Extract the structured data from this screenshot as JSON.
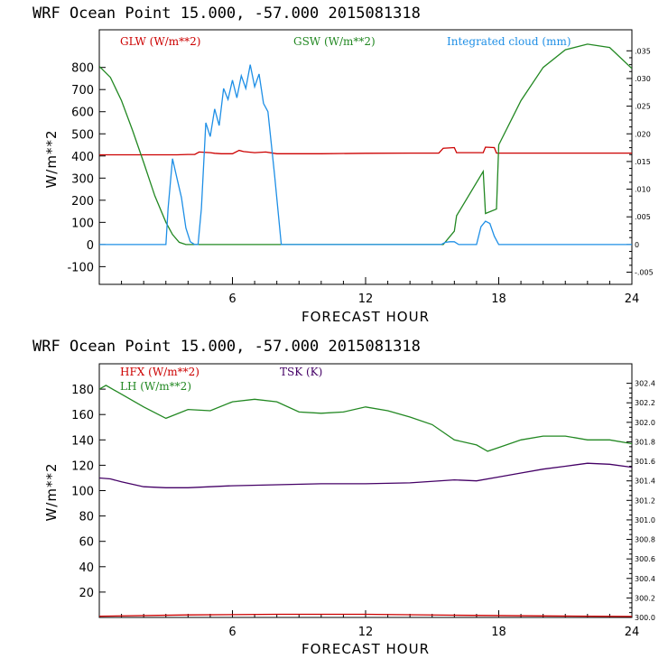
{
  "chart_data": [
    {
      "type": "line",
      "title": "WRF   Ocean Point   15.000, -57.000  2015081318",
      "xlabel": "FORECAST HOUR",
      "ylabel": "W/m**2",
      "xlim": [
        0,
        24
      ],
      "ylim": [
        -180,
        970
      ],
      "xticks": [
        6,
        12,
        18,
        24
      ],
      "yticks": [
        -100,
        0,
        100,
        200,
        300,
        400,
        500,
        600,
        700,
        800
      ],
      "y2lim": [
        -0.0072,
        0.0388
      ],
      "y2ticks": [
        -0.005,
        0,
        0.005,
        0.01,
        0.015,
        0.02,
        0.025,
        0.03,
        0.035
      ],
      "y2ticklabels": [
        "-.005",
        "0",
        ".005",
        ".010",
        ".015",
        ".020",
        ".025",
        ".030",
        ".035"
      ],
      "series": [
        {
          "name": "GLW (W/m**2)",
          "color": "#cc0000",
          "axis": "left",
          "x": [
            0,
            3.5,
            4.0,
            4.3,
            4.5,
            5.0,
            5.2,
            5.5,
            6.0,
            6.3,
            6.5,
            7.0,
            7.5,
            8.0,
            10,
            12,
            14,
            15.3,
            15.5,
            16.0,
            16.1,
            17.3,
            17.4,
            17.8,
            17.9,
            20,
            24
          ],
          "values": [
            405,
            405,
            407,
            407,
            418,
            415,
            412,
            410,
            410,
            425,
            420,
            415,
            418,
            410,
            410,
            412,
            413,
            413,
            435,
            438,
            415,
            415,
            440,
            438,
            413,
            413,
            413
          ]
        },
        {
          "name": "GSW (W/m**2)",
          "color": "#228822",
          "axis": "left",
          "x": [
            0,
            0.5,
            1,
            1.5,
            2,
            2.5,
            3,
            3.3,
            3.6,
            3.9,
            4.5,
            15.5,
            16.0,
            16.1,
            17.3,
            17.4,
            17.9,
            18.0,
            19,
            20,
            21,
            22,
            23,
            24
          ],
          "values": [
            805,
            755,
            650,
            515,
            370,
            220,
            100,
            45,
            10,
            0,
            0,
            0,
            60,
            130,
            330,
            140,
            160,
            450,
            650,
            800,
            880,
            905,
            890,
            795
          ]
        },
        {
          "name": "Integrated cloud (mm)",
          "color": "#1e8fe6",
          "axis": "right",
          "x": [
            0,
            3.0,
            3.1,
            3.3,
            3.5,
            3.7,
            3.9,
            4.1,
            4.3,
            4.45,
            4.6,
            4.8,
            5.0,
            5.2,
            5.4,
            5.6,
            5.8,
            6.0,
            6.2,
            6.4,
            6.6,
            6.8,
            7.0,
            7.2,
            7.4,
            7.6,
            7.9,
            8.2,
            15.4,
            15.6,
            15.8,
            16.0,
            16.2,
            17.0,
            17.2,
            17.4,
            17.6,
            17.8,
            18.0,
            18.2,
            24
          ],
          "values": [
            0,
            0,
            0.0065,
            0.0155,
            0.012,
            0.0085,
            0.003,
            0.0005,
            0.0,
            0.0,
            0.0065,
            0.022,
            0.0195,
            0.0245,
            0.0215,
            0.0282,
            0.0262,
            0.0297,
            0.0265,
            0.0305,
            0.0282,
            0.0325,
            0.0285,
            0.0308,
            0.0255,
            0.024,
            0.0125,
            0.0,
            0.0,
            0.0004,
            0.0005,
            0.0005,
            0.0,
            0.0,
            0.0032,
            0.0042,
            0.0038,
            0.0015,
            0.0,
            0.0,
            0.0
          ]
        }
      ]
    },
    {
      "type": "line",
      "title": "WRF   Ocean Point   15.000, -57.000  2015081318",
      "xlabel": "FORECAST HOUR",
      "ylabel": "W/m**2",
      "xlim": [
        0,
        24
      ],
      "ylim": [
        0,
        200
      ],
      "xticks": [
        6,
        12,
        18,
        24
      ],
      "yticks": [
        20,
        40,
        60,
        80,
        100,
        120,
        140,
        160,
        180
      ],
      "y2lim": [
        300.0,
        302.6
      ],
      "y2ticks": [
        300.0,
        300.2,
        300.4,
        300.6,
        300.8,
        301.0,
        301.2,
        301.4,
        301.6,
        301.8,
        302.0,
        302.2,
        302.4
      ],
      "y2ticklabels": [
        "300.0",
        "300.2",
        "300.4",
        "300.6",
        "300.8",
        "301.0",
        "301.2",
        "301.4",
        "301.6",
        "301.8",
        "302.0",
        "302.2",
        "302.4"
      ],
      "series": [
        {
          "name": "HFX (W/m**2)",
          "color": "#cc0000",
          "axis": "left",
          "x": [
            0,
            4,
            8,
            12,
            16,
            20,
            24
          ],
          "values": [
            1.0,
            2.0,
            2.5,
            2.5,
            1.8,
            1.2,
            0.8
          ]
        },
        {
          "name": "LH  (W/m**2)",
          "color": "#228822",
          "axis": "left",
          "x": [
            0,
            0.3,
            1,
            2,
            3,
            4,
            5,
            6,
            7,
            8,
            9,
            10,
            11,
            12,
            13,
            14,
            15,
            16,
            17,
            17.5,
            18,
            19,
            20,
            21,
            22,
            23,
            24
          ],
          "values": [
            180,
            183,
            176,
            166,
            157,
            164,
            163,
            170,
            172,
            170,
            162,
            161,
            162,
            166,
            163,
            158,
            152,
            140,
            136,
            131,
            134,
            140,
            143,
            143,
            140,
            140,
            137
          ]
        },
        {
          "name": "TSK (K)",
          "color": "#440066",
          "axis": "right",
          "x": [
            0,
            0.5,
            1,
            2,
            3,
            4,
            5,
            6,
            8,
            10,
            12,
            14,
            16,
            17,
            18,
            19,
            20,
            21,
            22,
            23,
            24
          ],
          "values": [
            301.43,
            301.42,
            301.39,
            301.34,
            301.33,
            301.33,
            301.34,
            301.35,
            301.36,
            301.37,
            301.37,
            301.38,
            301.41,
            301.4,
            301.44,
            301.48,
            301.52,
            301.55,
            301.58,
            301.57,
            301.54
          ]
        }
      ]
    }
  ]
}
